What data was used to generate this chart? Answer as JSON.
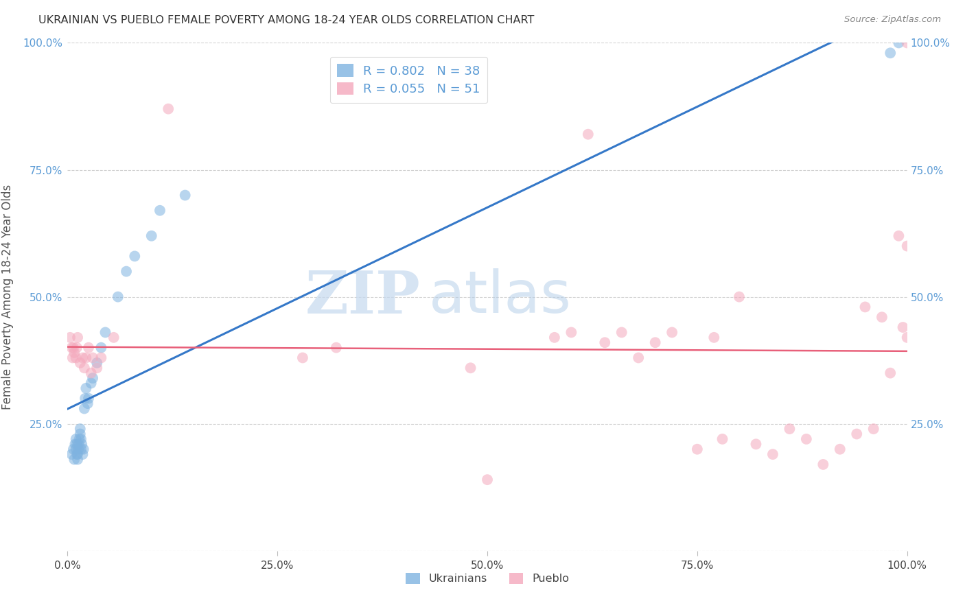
{
  "title": "UKRAINIAN VS PUEBLO FEMALE POVERTY AMONG 18-24 YEAR OLDS CORRELATION CHART",
  "source": "Source: ZipAtlas.com",
  "ylabel": "Female Poverty Among 18-24 Year Olds",
  "blue_color": "#7fb3e0",
  "pink_color": "#f4a8bc",
  "blue_line_color": "#3578c8",
  "pink_line_color": "#e8607a",
  "legend_blue_label": "R = 0.802   N = 38",
  "legend_pink_label": "R = 0.055   N = 51",
  "legend_label_blue": "Ukrainians",
  "legend_label_pink": "Pueblo",
  "watermark_zip": "ZIP",
  "watermark_atlas": "atlas",
  "tick_color": "#5b9bd5",
  "blue_x": [
    0.005,
    0.007,
    0.008,
    0.009,
    0.01,
    0.01,
    0.011,
    0.011,
    0.012,
    0.012,
    0.013,
    0.013,
    0.014,
    0.015,
    0.015,
    0.016,
    0.016,
    0.017,
    0.018,
    0.019,
    0.02,
    0.021,
    0.022,
    0.024,
    0.025,
    0.028,
    0.03,
    0.035,
    0.04,
    0.045,
    0.06,
    0.07,
    0.08,
    0.1,
    0.11,
    0.14,
    0.98,
    0.99
  ],
  "blue_y": [
    0.19,
    0.2,
    0.18,
    0.21,
    0.22,
    0.2,
    0.19,
    0.21,
    0.18,
    0.19,
    0.2,
    0.21,
    0.22,
    0.23,
    0.24,
    0.2,
    0.22,
    0.21,
    0.19,
    0.2,
    0.28,
    0.3,
    0.32,
    0.29,
    0.3,
    0.33,
    0.34,
    0.37,
    0.4,
    0.43,
    0.5,
    0.55,
    0.58,
    0.62,
    0.67,
    0.7,
    0.98,
    1.0
  ],
  "pink_x": [
    0.003,
    0.005,
    0.006,
    0.007,
    0.008,
    0.01,
    0.011,
    0.012,
    0.015,
    0.018,
    0.02,
    0.022,
    0.025,
    0.028,
    0.03,
    0.035,
    0.04,
    0.055,
    0.12,
    0.28,
    0.32,
    0.48,
    0.5,
    0.58,
    0.6,
    0.62,
    0.64,
    0.66,
    0.68,
    0.7,
    0.72,
    0.75,
    0.77,
    0.78,
    0.8,
    0.82,
    0.84,
    0.86,
    0.88,
    0.9,
    0.92,
    0.94,
    0.95,
    0.96,
    0.97,
    0.98,
    0.99,
    0.995,
    1.0,
    1.0,
    1.0
  ],
  "pink_y": [
    0.42,
    0.4,
    0.38,
    0.4,
    0.39,
    0.38,
    0.4,
    0.42,
    0.37,
    0.38,
    0.36,
    0.38,
    0.4,
    0.35,
    0.38,
    0.36,
    0.38,
    0.42,
    0.87,
    0.38,
    0.4,
    0.36,
    0.14,
    0.42,
    0.43,
    0.82,
    0.41,
    0.43,
    0.38,
    0.41,
    0.43,
    0.2,
    0.42,
    0.22,
    0.5,
    0.21,
    0.19,
    0.24,
    0.22,
    0.17,
    0.2,
    0.23,
    0.48,
    0.24,
    0.46,
    0.35,
    0.62,
    0.44,
    0.6,
    0.42,
    1.0
  ]
}
